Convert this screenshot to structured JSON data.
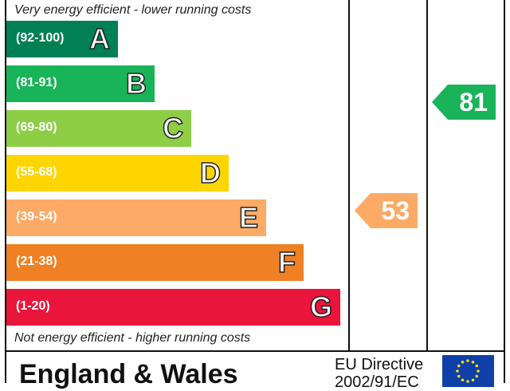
{
  "chart_data": {
    "type": "bar",
    "top_caption": "Very energy efficient - lower running costs",
    "bottom_caption": "Not energy efficient - higher running costs",
    "bands": [
      {
        "letter": "A",
        "range": "(92-100)",
        "color": "#008054"
      },
      {
        "letter": "B",
        "range": "(81-91)",
        "color": "#19b459"
      },
      {
        "letter": "C",
        "range": "(69-80)",
        "color": "#8dce46"
      },
      {
        "letter": "D",
        "range": "(55-68)",
        "color": "#ffd500"
      },
      {
        "letter": "E",
        "range": "(39-54)",
        "color": "#fcaa65"
      },
      {
        "letter": "F",
        "range": "(21-38)",
        "color": "#ef8023"
      },
      {
        "letter": "G",
        "range": "(1-20)",
        "color": "#e9153b"
      }
    ],
    "current": {
      "value": "53",
      "band": "E",
      "color": "#fcaa65"
    },
    "potential": {
      "value": "81",
      "band": "B",
      "color": "#19b459"
    }
  },
  "footer": {
    "country": "England & Wales",
    "directive_line1": "EU Directive",
    "directive_line2": "2002/91/EC"
  }
}
